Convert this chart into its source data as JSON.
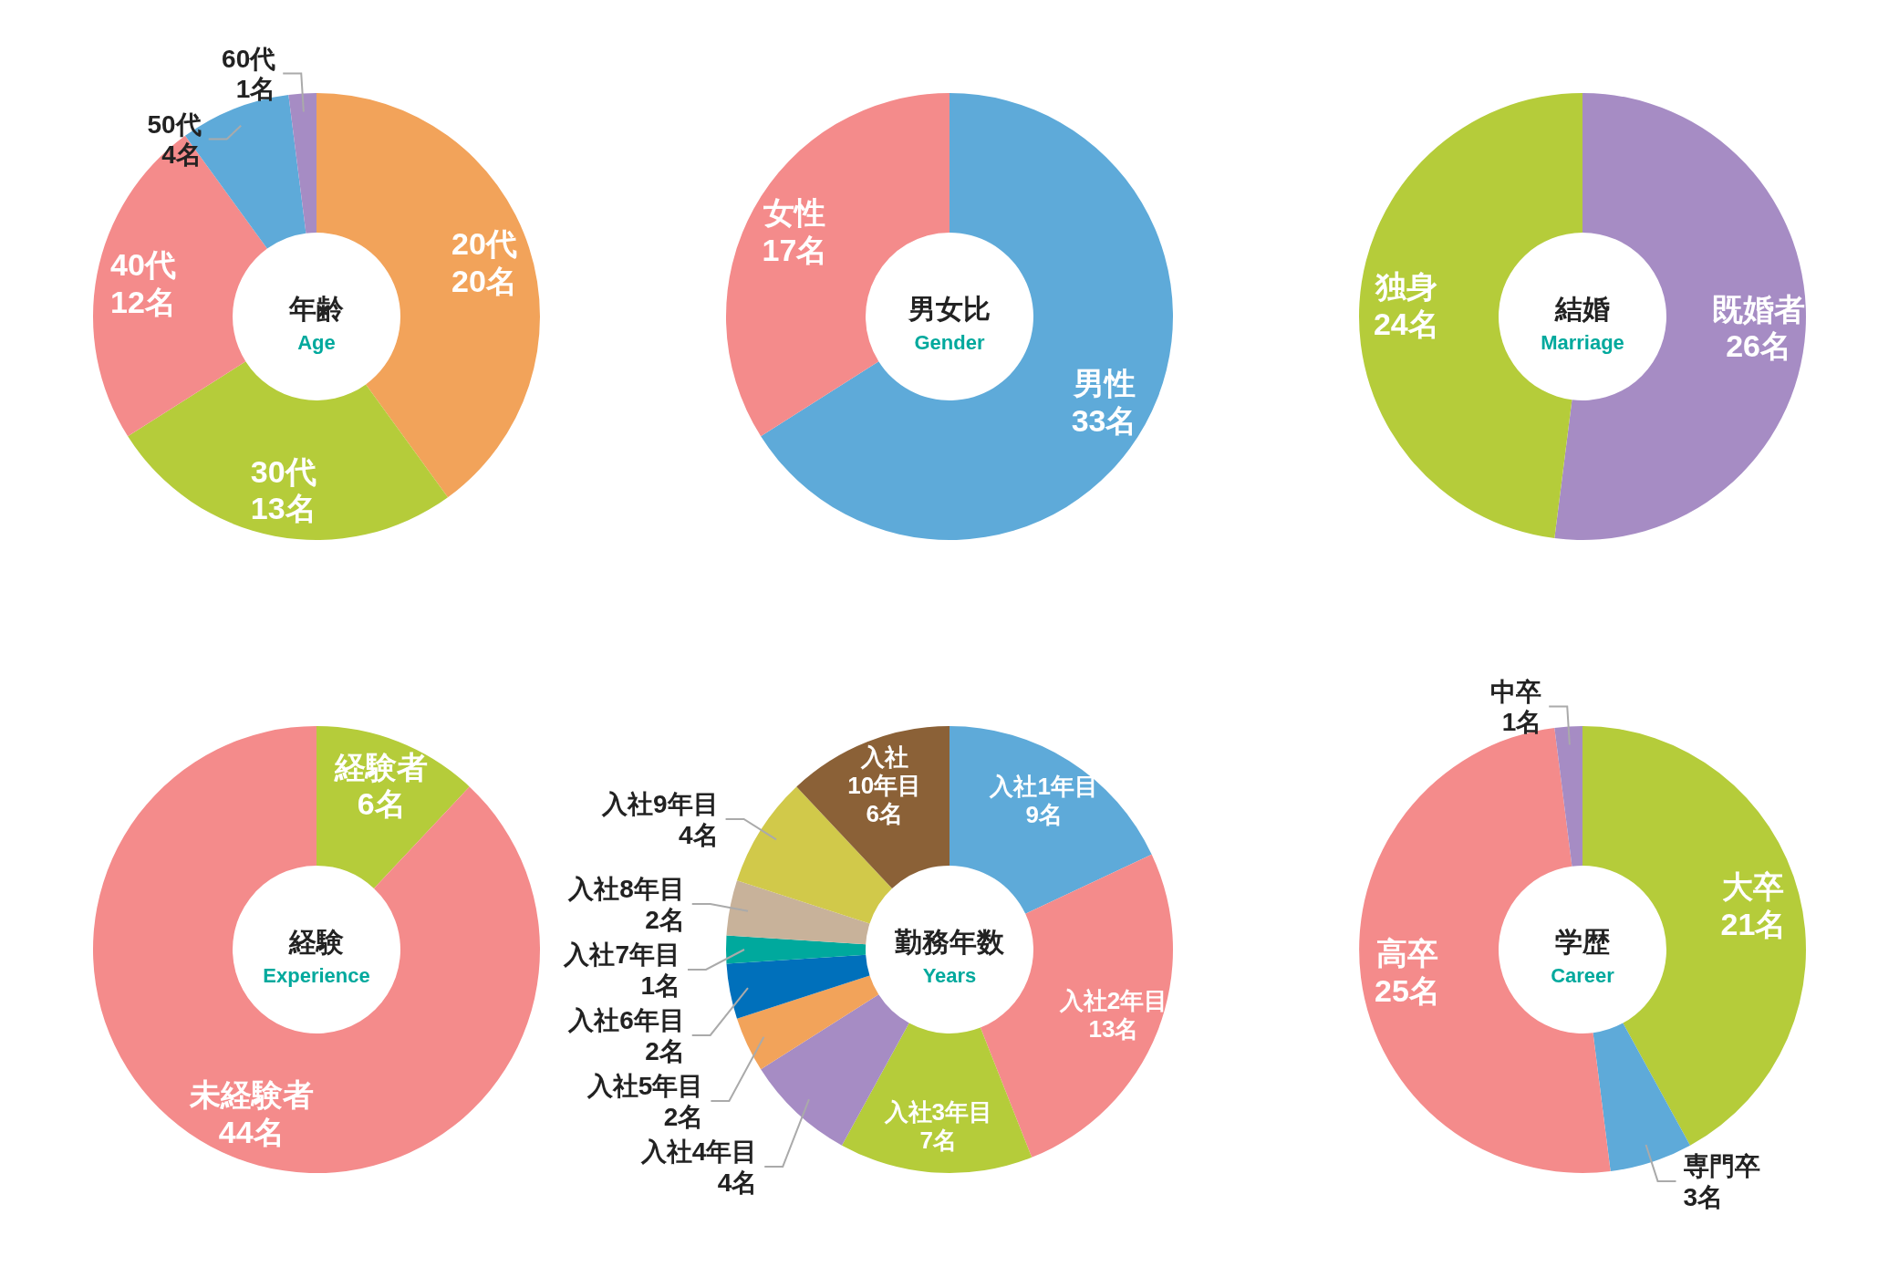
{
  "chart_data": [
    {
      "type": "donut",
      "title": "年齢",
      "subtitle": "Age",
      "categories": [
        "20代",
        "30代",
        "40代",
        "50代",
        "60代"
      ],
      "values": [
        20,
        13,
        12,
        4,
        1
      ],
      "value_labels": [
        "20名",
        "13名",
        "12名",
        "4名",
        "1名"
      ],
      "colors": [
        "#f2a35a",
        "#b5cc3a",
        "#f48b8b",
        "#5eaad9",
        "#a68cc4"
      ]
    },
    {
      "type": "donut",
      "title": "男女比",
      "subtitle": "Gender",
      "categories": [
        "男性",
        "女性"
      ],
      "values": [
        33,
        17
      ],
      "value_labels": [
        "33名",
        "17名"
      ],
      "colors": [
        "#5eaad9",
        "#f48b8b"
      ]
    },
    {
      "type": "donut",
      "title": "結婚",
      "subtitle": "Marriage",
      "categories": [
        "既婚者",
        "独身"
      ],
      "values": [
        26,
        24
      ],
      "value_labels": [
        "26名",
        "24名"
      ],
      "colors": [
        "#a68cc4",
        "#b5cc3a"
      ]
    },
    {
      "type": "donut",
      "title": "経験",
      "subtitle": "Experience",
      "categories": [
        "経験者",
        "未経験者"
      ],
      "values": [
        6,
        44
      ],
      "value_labels": [
        "6名",
        "44名"
      ],
      "colors": [
        "#b5cc3a",
        "#f48b8b"
      ]
    },
    {
      "type": "donut",
      "title": "勤務年数",
      "subtitle": "Years",
      "categories": [
        "入社1年目",
        "入社2年目",
        "入社3年目",
        "入社4年目",
        "入社5年目",
        "入社6年目",
        "入社7年目",
        "入社8年目",
        "入社9年目",
        "入社10年目"
      ],
      "values": [
        9,
        13,
        7,
        4,
        2,
        2,
        1,
        2,
        4,
        6
      ],
      "value_labels": [
        "9名",
        "13名",
        "7名",
        "4名",
        "2名",
        "2名",
        "1名",
        "2名",
        "4名",
        "6名"
      ],
      "colors": [
        "#5eaad9",
        "#f48b8b",
        "#b5cc3a",
        "#a68cc4",
        "#f2a35a",
        "#0070bb",
        "#00a99d",
        "#c8b29a",
        "#d1c94a",
        "#8b6137"
      ]
    },
    {
      "type": "donut",
      "title": "学歴",
      "subtitle": "Career",
      "categories": [
        "大卒",
        "専門卒",
        "高卒",
        "中卒"
      ],
      "values": [
        21,
        3,
        25,
        1
      ],
      "value_labels": [
        "21名",
        "3名",
        "25名",
        "1名"
      ],
      "colors": [
        "#b5cc3a",
        "#5eaad9",
        "#f48b8b",
        "#a68cc4"
      ]
    }
  ]
}
